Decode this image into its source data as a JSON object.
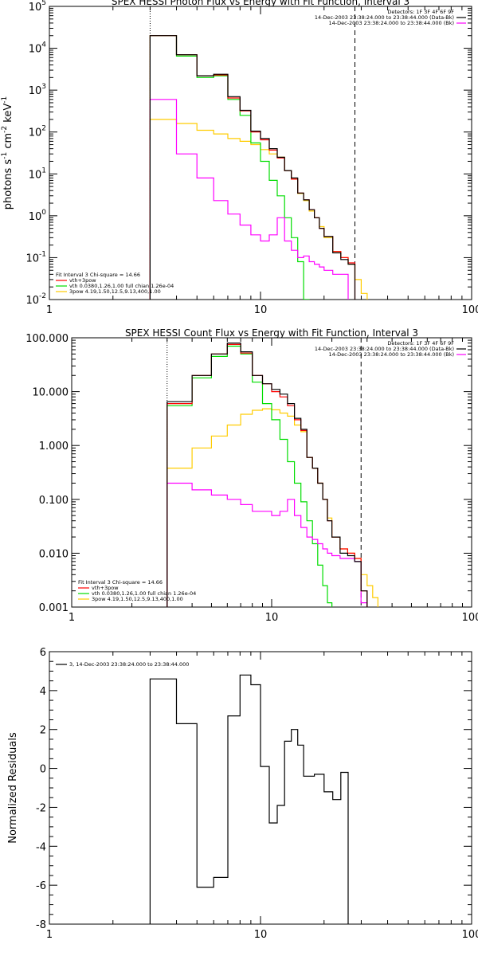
{
  "chart_data": [
    {
      "type": "line",
      "title": "SPEX HESSI Photon Flux vs Energy with Fit Function, Interval 3",
      "ylabel_parts": [
        "photons s",
        "-1",
        " cm",
        "-2",
        " keV",
        "-1"
      ],
      "xscale": "log",
      "yscale": "log",
      "xlim": [
        1,
        100
      ],
      "ylim": [
        0.01,
        100000
      ],
      "xticks": [
        {
          "v": 1,
          "label": "1"
        },
        {
          "v": 10,
          "label": "10"
        },
        {
          "v": 100,
          "label": "100"
        }
      ],
      "yticks": [
        {
          "v": 0.01,
          "base": "10",
          "exp": "-2"
        },
        {
          "v": 0.1,
          "base": "10",
          "exp": "-1"
        },
        {
          "v": 1,
          "base": "10",
          "exp": "0"
        },
        {
          "v": 10,
          "base": "10",
          "exp": "1"
        },
        {
          "v": 100,
          "base": "10",
          "exp": "2"
        },
        {
          "v": 1000,
          "base": "10",
          "exp": "3"
        },
        {
          "v": 10000,
          "base": "10",
          "exp": "4"
        },
        {
          "v": 100000,
          "base": "10",
          "exp": "5"
        }
      ],
      "vlines": [
        {
          "x": 3,
          "style": "dotted"
        },
        {
          "x": 28,
          "style": "dashed"
        }
      ],
      "header_lines": [
        {
          "text": "Detectors: 1F 3F 4F 6F 9F",
          "color": ""
        },
        {
          "text": "14-Dec-2003 23:38:24.000 to 23:38:44.000 (Data-Bk)",
          "color": "#000000"
        },
        {
          "text": "14-Dec-2003 23:38:24.000 to 23:38:44.000 (Bk)",
          "color": "#ff00ff"
        }
      ],
      "legend_lines": [
        {
          "text": "Fit Interval 3   Chi-square = 14.66",
          "color": ""
        },
        {
          "text": "vth+3pow",
          "color": "#ff0000"
        },
        {
          "text": "vth 0.0380,1.26,1.00  full chian 1.26e-04",
          "color": "#00dd00"
        },
        {
          "text": "3pow 4.19,1.50,12.5,9.13,400,1.00",
          "color": "#ffcc00"
        }
      ],
      "bin_edges": [
        3,
        4,
        5,
        6,
        7,
        8,
        9,
        10,
        11,
        12,
        13,
        14,
        15,
        16,
        17,
        18,
        19,
        20,
        22,
        24,
        26,
        28,
        30,
        32,
        34,
        36
      ],
      "series": [
        {
          "color": "#000000",
          "values": [
            20000,
            7000,
            2200,
            2400,
            700,
            330,
            105,
            70,
            40,
            25,
            12,
            8,
            3.5,
            2.4,
            1.4,
            0.9,
            0.5,
            0.32,
            0.13,
            0.09,
            0.07,
            0.006
          ]
        },
        {
          "color": "#ff0000",
          "values": [
            20000,
            7000,
            2200,
            2300,
            650,
            320,
            100,
            65,
            37,
            24,
            12,
            7.5,
            3.5,
            2.4,
            1.4,
            0.9,
            0.5,
            0.32,
            0.14,
            0.1,
            0.075,
            0.006
          ]
        },
        {
          "color": "#00dd00",
          "values": [
            20000,
            6500,
            2000,
            2200,
            600,
            250,
            55,
            20,
            7,
            3,
            0.9,
            0.3,
            0.08,
            0.01,
            0.004
          ]
        },
        {
          "color": "#ffcc00",
          "values": [
            200,
            160,
            110,
            90,
            70,
            60,
            50,
            38,
            30,
            25,
            12,
            7.5,
            3.4,
            2.3,
            1.3,
            0.9,
            0.55,
            0.3,
            0.14,
            0.1,
            0.07,
            0.03,
            0.014,
            0.006
          ]
        },
        {
          "color": "#ff00ff",
          "values": [
            600,
            30,
            8,
            2.3,
            1.1,
            0.6,
            0.35,
            0.25,
            0.35,
            0.9,
            0.25,
            0.15,
            0.1,
            0.11,
            0.08,
            0.07,
            0.06,
            0.05,
            0.04,
            0.04,
            0.004
          ]
        }
      ]
    },
    {
      "type": "line",
      "title": "SPEX HESSI Count Flux vs Energy with Fit Function, Interval 3",
      "ylabel_parts": [],
      "xscale": "log",
      "yscale": "log",
      "xlim": [
        1,
        100
      ],
      "ylim": [
        0.001,
        100
      ],
      "xticks": [
        {
          "v": 1,
          "label": "1"
        },
        {
          "v": 10,
          "label": "10"
        },
        {
          "v": 100,
          "label": "100"
        }
      ],
      "yticks": [
        {
          "v": 0.001,
          "label": "0.001"
        },
        {
          "v": 0.01,
          "label": "0.010"
        },
        {
          "v": 0.1,
          "label": "0.100"
        },
        {
          "v": 1,
          "label": "1.000"
        },
        {
          "v": 10,
          "label": "10.000"
        },
        {
          "v": 100,
          "label": "100.000"
        }
      ],
      "vlines": [
        {
          "x": 3,
          "style": "dotted"
        },
        {
          "x": 28,
          "style": "dashed"
        }
      ],
      "header_lines": [
        {
          "text": "Detectors: 1F 3F 4F 6F 9F",
          "color": ""
        },
        {
          "text": "14-Dec-2003 23:38:24.000 to 23:38:44.000 (Data-Bk)",
          "color": "#000000"
        },
        {
          "text": "14-Dec-2003 23:38:24.000 to 23:38:44.000 (Bk)",
          "color": "#ff00ff"
        }
      ],
      "legend_lines": [
        {
          "text": "Fit Interval 3   Chi-square = 14.66",
          "color": ""
        },
        {
          "text": "vth+3pow",
          "color": "#ff0000"
        },
        {
          "text": "vth 0.0380,1.26,1.00  full chian 1.26e-04",
          "color": "#00dd00"
        },
        {
          "text": "3pow 4.19,1.50,12.5,9.13,400,1.00",
          "color": "#ffcc00"
        }
      ],
      "bin_edges": [
        3,
        4,
        5,
        6,
        7,
        8,
        9,
        10,
        11,
        12,
        13,
        14,
        15,
        16,
        17,
        18,
        19,
        20,
        22,
        24,
        26,
        28,
        30,
        32,
        34,
        36
      ],
      "series": [
        {
          "color": "#000000",
          "values": [
            6.5,
            20,
            50,
            80,
            55,
            20,
            14,
            11,
            9,
            6,
            3.2,
            2,
            0.6,
            0.38,
            0.2,
            0.1,
            0.04,
            0.02,
            0.01,
            0.009,
            0.007,
            0.002
          ]
        },
        {
          "color": "#ff0000",
          "values": [
            6,
            20,
            50,
            75,
            52,
            20,
            14,
            10,
            8,
            5.5,
            3,
            1.9,
            0.6,
            0.38,
            0.2,
            0.1,
            0.04,
            0.02,
            0.012,
            0.01,
            0.008,
            0.002
          ]
        },
        {
          "color": "#00dd00",
          "values": [
            5.5,
            18,
            45,
            70,
            50,
            15,
            6,
            3,
            1.3,
            0.5,
            0.2,
            0.09,
            0.04,
            0.015,
            0.006,
            0.0025,
            0.0012
          ]
        },
        {
          "color": "#ffcc00",
          "values": [
            0.38,
            0.9,
            1.5,
            2.4,
            3.8,
            4.5,
            4.8,
            4.6,
            4,
            3.5,
            2.4,
            1.8,
            0.6,
            0.38,
            0.2,
            0.1,
            0.045,
            0.02,
            0.012,
            0.01,
            0.008,
            0.004,
            0.0025,
            0.0015
          ]
        },
        {
          "color": "#ff00ff",
          "values": [
            0.2,
            0.15,
            0.12,
            0.1,
            0.08,
            0.06,
            0.06,
            0.05,
            0.06,
            0.1,
            0.05,
            0.03,
            0.02,
            0.018,
            0.015,
            0.012,
            0.01,
            0.009,
            0.008,
            0.008,
            0.007,
            0.0012
          ]
        }
      ]
    },
    {
      "type": "line",
      "title": "",
      "ylabel": "Normalized Residuals",
      "xscale": "log",
      "yscale": "linear",
      "xlim": [
        1,
        100
      ],
      "ylim": [
        -8,
        6
      ],
      "xticks": [
        {
          "v": 1,
          "label": "1"
        },
        {
          "v": 10,
          "label": "10"
        },
        {
          "v": 100,
          "label": "100"
        }
      ],
      "yticks": [
        {
          "v": -8,
          "label": "-8"
        },
        {
          "v": -6,
          "label": "-6"
        },
        {
          "v": -4,
          "label": "-4"
        },
        {
          "v": -2,
          "label": "-2"
        },
        {
          "v": 0,
          "label": "0"
        },
        {
          "v": 2,
          "label": "2"
        },
        {
          "v": 4,
          "label": "4"
        },
        {
          "v": 6,
          "label": "6"
        }
      ],
      "legend_lines": [
        {
          "text": "3, 14-Dec-2003 23:38:24.000 to 23:38:44.000",
          "color": "#000000"
        }
      ],
      "bin_edges": [
        3,
        4,
        5,
        6,
        7,
        8,
        9,
        10,
        11,
        12,
        13,
        14,
        15,
        16,
        17,
        18,
        19,
        20,
        22,
        24,
        26,
        28
      ],
      "series": [
        {
          "color": "#000000",
          "values": [
            4.6,
            2.3,
            -6.1,
            -5.6,
            2.7,
            4.8,
            4.3,
            0.1,
            -2.8,
            -1.9,
            1.4,
            2.0,
            1.2,
            -0.4,
            -0.4,
            -0.3,
            -0.3,
            -1.2,
            -1.6,
            -0.2
          ]
        }
      ]
    }
  ]
}
